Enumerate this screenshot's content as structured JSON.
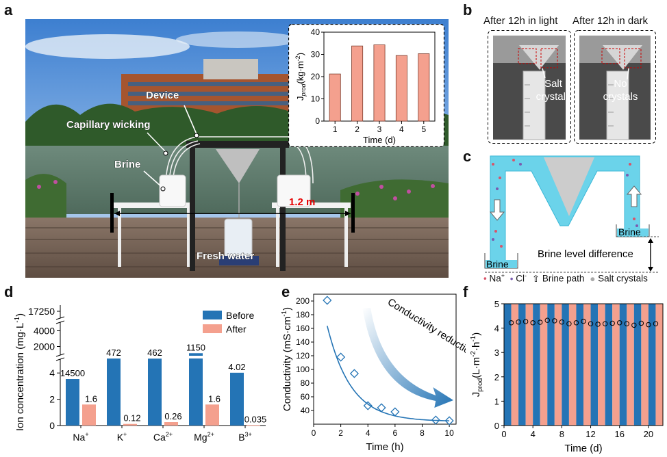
{
  "panels": {
    "a": {
      "letter": "a",
      "labels": {
        "device": "Device",
        "capillary": "Capillary wicking",
        "brine": "Brine",
        "distance": "1.2 m",
        "fresh_water": "Fresh water"
      }
    },
    "b": {
      "letter": "b",
      "light_title": "After 12h in light",
      "dark_title": "After 12h in dark",
      "light_note_1": "Salt",
      "light_note_2": "crystals",
      "dark_note_1": "No",
      "dark_note_2": "crystals"
    },
    "c": {
      "letter": "c",
      "brine_left": "Brine",
      "brine_right": "Brine",
      "level_diff": "Brine level difference",
      "legend_na": "Na",
      "legend_cl": "Cl",
      "legend_na_sup": "+",
      "legend_cl_sup": "-",
      "legend_path": "Brine path",
      "legend_salt": "Salt crystals"
    },
    "d": {
      "letter": "d"
    },
    "e": {
      "letter": "e"
    },
    "f": {
      "letter": "f"
    }
  },
  "chart_data": [
    {
      "id": "inset_a",
      "type": "bar",
      "categories": [
        "1",
        "2",
        "3",
        "4",
        "5"
      ],
      "values": [
        21.2,
        33.8,
        34.3,
        29.5,
        30.3
      ],
      "xlabel": "Time (d)",
      "ylabel_main": "J",
      "ylabel_sub": "prod",
      "ylabel_unit": "(kg·m",
      "ylabel_exp": "-2",
      "ylabel_close": ")",
      "yticks": [
        "0",
        "10",
        "20",
        "30",
        "40"
      ],
      "ylim": [
        0,
        40
      ],
      "color": "#f4a08e"
    },
    {
      "id": "d",
      "type": "bar",
      "categories": [
        "Na",
        "K",
        "Ca",
        "Mg",
        "B"
      ],
      "category_sup": [
        "+",
        "+",
        "2+",
        "2+",
        "3+"
      ],
      "series": [
        {
          "name": "Before",
          "values": [
            14500,
            472,
            462,
            1150,
            4.02
          ],
          "labels": [
            "14500",
            "472",
            "462",
            "1150",
            "4.02"
          ],
          "color": "#2474b5"
        },
        {
          "name": "After",
          "values": [
            1.6,
            0.12,
            0.26,
            1.6,
            0.035
          ],
          "labels": [
            "1.6",
            "0.12",
            "0.26",
            "1.6",
            "0.035"
          ],
          "color": "#f4a08e"
        }
      ],
      "ylabel": "Ion concentration (mg·L",
      "ylabel_exp": "-1",
      "ylabel_close": ")",
      "yticks": [
        "0",
        "2",
        "4",
        "2000",
        "4000",
        "17250"
      ],
      "axis_breaks": [
        [
          5,
          1000
        ],
        [
          5000,
          17000
        ]
      ],
      "legend_position": "top-right"
    },
    {
      "id": "e",
      "type": "scatter",
      "x": [
        1,
        2,
        3,
        4,
        5,
        6,
        9,
        10
      ],
      "y": [
        201,
        118,
        94,
        47,
        44,
        38,
        26,
        25
      ],
      "fit": "exponential decay",
      "xlabel": "Time (h)",
      "ylabel": "Conductivity (mS·cm",
      "ylabel_exp": "-1",
      "ylabel_close": ")",
      "xlim": [
        0,
        10.5
      ],
      "ylim": [
        20,
        210
      ],
      "xticks": [
        "0",
        "2",
        "4",
        "6",
        "8",
        "10"
      ],
      "yticks": [
        "40",
        "60",
        "80",
        "100",
        "120",
        "140",
        "160",
        "180",
        "200"
      ],
      "annotation": "Conductivity reduction",
      "color": "#2474b5"
    },
    {
      "id": "f",
      "type": "scatter",
      "x": [
        1,
        2,
        3,
        4,
        5,
        6,
        7,
        8,
        9,
        10,
        11,
        12,
        13,
        14,
        15,
        16,
        17,
        18,
        19,
        20,
        21
      ],
      "y": [
        4.22,
        4.25,
        4.27,
        4.22,
        4.24,
        4.32,
        4.3,
        4.25,
        4.18,
        4.22,
        4.28,
        4.18,
        4.16,
        4.18,
        4.2,
        4.22,
        4.18,
        4.12,
        4.2,
        4.14,
        4.18
      ],
      "xlabel": "Time (d)",
      "ylabel_main": "J",
      "ylabel_sub": "prod",
      "ylabel_unit": "(L·m",
      "ylabel_exp1": "-2",
      "ylabel_mid": "·h",
      "ylabel_exp2": "-1",
      "ylabel_close": ")",
      "xlim": [
        0,
        22
      ],
      "ylim": [
        0,
        5
      ],
      "xticks": [
        "0",
        "4",
        "8",
        "12",
        "16",
        "20"
      ],
      "yticks": [
        "0",
        "1",
        "2",
        "3",
        "4",
        "5"
      ],
      "stripe_colors": [
        "#2474b5",
        "#f4a08e"
      ]
    }
  ]
}
